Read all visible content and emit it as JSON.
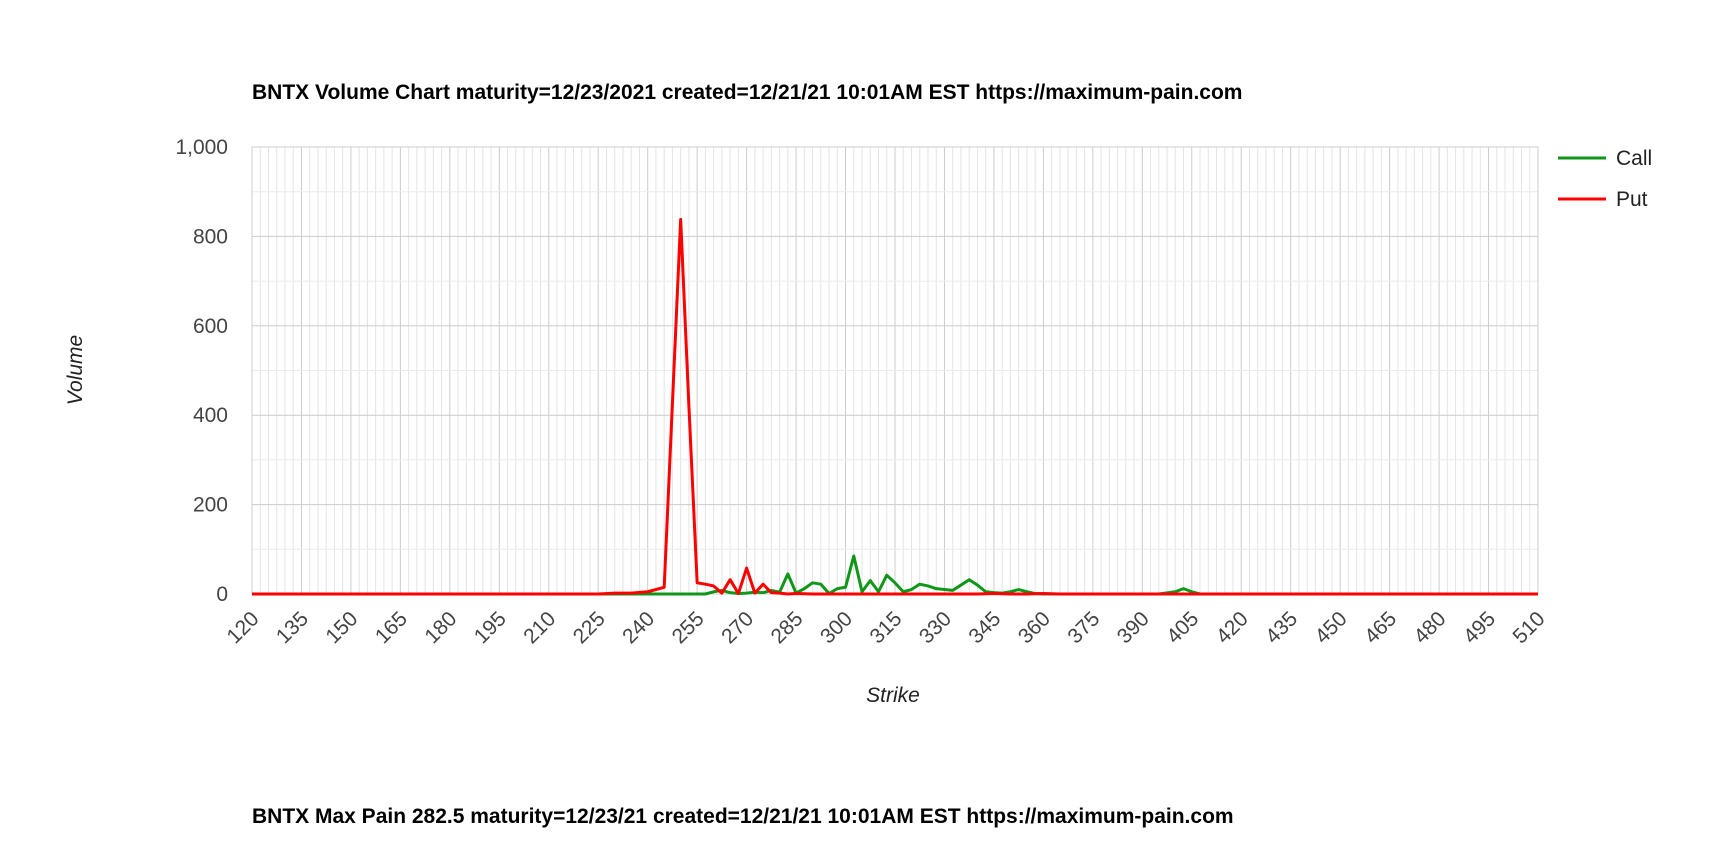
{
  "chart_data": {
    "type": "line",
    "title": "BNTX Volume Chart maturity=12/23/2021 created=12/21/21 10:01AM EST https://maximum-pain.com",
    "xlabel": "Strike",
    "ylabel": "Volume",
    "ylim": [
      0,
      1000
    ],
    "xlim": [
      120,
      510
    ],
    "x_tick_labels": [
      "120",
      "135",
      "150",
      "165",
      "180",
      "195",
      "210",
      "225",
      "240",
      "255",
      "270",
      "285",
      "300",
      "315",
      "330",
      "345",
      "360",
      "375",
      "390",
      "405",
      "420",
      "435",
      "450",
      "465",
      "480",
      "495",
      "510"
    ],
    "y_tick_labels": [
      "0",
      "200",
      "400",
      "600",
      "800",
      "1,000"
    ],
    "y_ticks": [
      0,
      200,
      400,
      600,
      800,
      1000
    ],
    "grid": true,
    "legend_position": "top-right",
    "series": [
      {
        "name": "Call",
        "color": "#109618",
        "points": [
          [
            120,
            0
          ],
          [
            225,
            0
          ],
          [
            240,
            0
          ],
          [
            250,
            0
          ],
          [
            255,
            0
          ],
          [
            257.5,
            0
          ],
          [
            260,
            5
          ],
          [
            262.5,
            8
          ],
          [
            265,
            3
          ],
          [
            267.5,
            1
          ],
          [
            270,
            2
          ],
          [
            272.5,
            4
          ],
          [
            275,
            3
          ],
          [
            277.5,
            8
          ],
          [
            280,
            4
          ],
          [
            282.5,
            45
          ],
          [
            285,
            2
          ],
          [
            287.5,
            12
          ],
          [
            290,
            25
          ],
          [
            292.5,
            22
          ],
          [
            295,
            1
          ],
          [
            297.5,
            12
          ],
          [
            300,
            15
          ],
          [
            302.5,
            85
          ],
          [
            305,
            5
          ],
          [
            307.5,
            30
          ],
          [
            310,
            5
          ],
          [
            312.5,
            42
          ],
          [
            315,
            25
          ],
          [
            317.5,
            5
          ],
          [
            320,
            10
          ],
          [
            322.5,
            22
          ],
          [
            325,
            18
          ],
          [
            327.5,
            12
          ],
          [
            330,
            10
          ],
          [
            332.5,
            8
          ],
          [
            335,
            20
          ],
          [
            337.5,
            32
          ],
          [
            340,
            20
          ],
          [
            342.5,
            5
          ],
          [
            345,
            3
          ],
          [
            347.5,
            2
          ],
          [
            350,
            5
          ],
          [
            352.5,
            10
          ],
          [
            355,
            5
          ],
          [
            357.5,
            1
          ],
          [
            360,
            0
          ],
          [
            365,
            0
          ],
          [
            375,
            0
          ],
          [
            390,
            0
          ],
          [
            395,
            0
          ],
          [
            400,
            5
          ],
          [
            402.5,
            12
          ],
          [
            405,
            5
          ],
          [
            407.5,
            0
          ],
          [
            420,
            0
          ],
          [
            510,
            0
          ]
        ]
      },
      {
        "name": "Put",
        "color": "#ff0000",
        "points": [
          [
            120,
            0
          ],
          [
            210,
            0
          ],
          [
            225,
            0
          ],
          [
            230,
            2
          ],
          [
            235,
            2
          ],
          [
            240,
            5
          ],
          [
            245,
            15
          ],
          [
            250,
            838
          ],
          [
            252.5,
            420
          ],
          [
            255,
            25
          ],
          [
            257.5,
            22
          ],
          [
            260,
            18
          ],
          [
            262.5,
            2
          ],
          [
            265,
            32
          ],
          [
            267.5,
            1
          ],
          [
            270,
            58
          ],
          [
            272.5,
            2
          ],
          [
            275,
            22
          ],
          [
            277.5,
            3
          ],
          [
            280,
            2
          ],
          [
            282.5,
            0
          ],
          [
            285,
            1
          ],
          [
            290,
            0
          ],
          [
            300,
            0
          ],
          [
            320,
            0
          ],
          [
            340,
            0
          ],
          [
            345,
            1
          ],
          [
            350,
            0
          ],
          [
            355,
            0
          ],
          [
            360,
            1
          ],
          [
            365,
            0
          ],
          [
            380,
            0
          ],
          [
            510,
            0
          ]
        ]
      }
    ]
  },
  "footer": {
    "text": "BNTX Max Pain 282.5 maturity=12/23/21 created=12/21/21 10:01AM EST https://maximum-pain.com"
  }
}
